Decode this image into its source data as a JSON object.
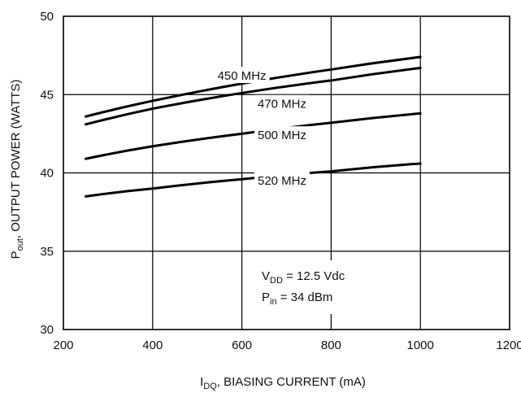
{
  "chart_data": {
    "type": "line",
    "x_axis": {
      "label_main": "I",
      "label_sub": "DQ",
      "label_rest": ", BIASING CURRENT (mA)",
      "range": [
        200,
        1200
      ],
      "ticks": [
        200,
        400,
        600,
        800,
        1000,
        1200
      ]
    },
    "y_axis": {
      "label_main": "P",
      "label_sub": "out",
      "label_rest": ", OUTPUT POWER (WATTS)",
      "range": [
        30,
        50
      ],
      "ticks": [
        30,
        35,
        40,
        45,
        50
      ]
    },
    "grid": true,
    "series": [
      {
        "name": "450 MHz",
        "x": [
          250,
          400,
          600,
          800,
          1000
        ],
        "y": [
          43.6,
          44.6,
          45.7,
          46.6,
          47.4
        ]
      },
      {
        "name": "470 MHz",
        "x": [
          250,
          400,
          600,
          800,
          1000
        ],
        "y": [
          43.1,
          44.1,
          45.1,
          45.9,
          46.7
        ]
      },
      {
        "name": "500 MHz",
        "x": [
          250,
          400,
          600,
          800,
          1000
        ],
        "y": [
          40.9,
          41.7,
          42.5,
          43.2,
          43.8
        ]
      },
      {
        "name": "520 MHz",
        "x": [
          250,
          400,
          600,
          800,
          1000
        ],
        "y": [
          38.5,
          39.0,
          39.6,
          40.1,
          40.6
        ]
      }
    ],
    "conditions": [
      {
        "main": "V",
        "sub": "DD",
        "rest": " = 12.5 Vdc"
      },
      {
        "main": "P",
        "sub": "in",
        "rest": " = 34 dBm"
      }
    ]
  }
}
